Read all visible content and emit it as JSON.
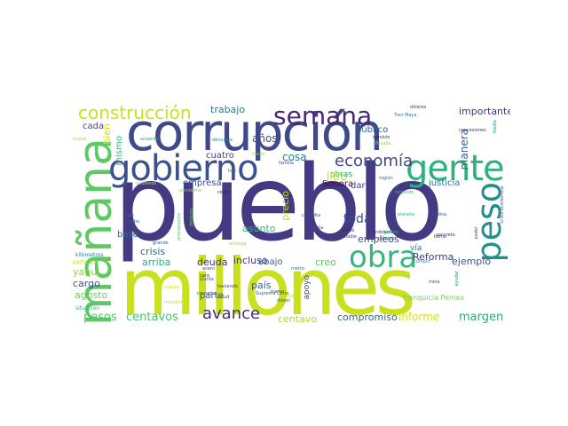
{
  "words": [
    {
      "text": "pueblo",
      "color": "#443a83"
    },
    {
      "text": "millones",
      "color": "#c8e020"
    },
    {
      "text": "corrupción",
      "color": "#3e4a89"
    },
    {
      "text": "mañana",
      "color": "#5ec962"
    },
    {
      "text": "gobierno",
      "color": "#3b518b"
    },
    {
      "text": "gente",
      "color": "#2db27d"
    },
    {
      "text": "peso",
      "color": "#21908d"
    },
    {
      "text": "obra",
      "color": "#35b779"
    },
    {
      "text": "semana",
      "color": "#482878"
    },
    {
      "text": "construcción",
      "color": "#cae11f"
    },
    {
      "text": "economía",
      "color": "#3f4889"
    },
    {
      "text": "avance",
      "color": "#472d7b"
    },
    {
      "text": "pesos",
      "color": "#57c666"
    },
    {
      "text": "centavos",
      "color": "#4ac16d"
    },
    {
      "text": "margen",
      "color": "#26ad81"
    },
    {
      "text": "informe",
      "color": "#d8e219"
    },
    {
      "text": "compromiso",
      "color": "#31668e"
    },
    {
      "text": "centavo",
      "color": "#a8db34"
    },
    {
      "text": "toda",
      "color": "#3d4e8a"
    },
    {
      "text": "obras",
      "color": "#20a386"
    },
    {
      "text": "ejemplo",
      "color": "#39568c"
    },
    {
      "text": "importante",
      "color": "#46337f"
    },
    {
      "text": "manera",
      "color": "#365c8d"
    },
    {
      "text": "años",
      "color": "#3b528b"
    },
    {
      "text": "trabajo",
      "color": "#2a788e"
    },
    {
      "text": "cada",
      "color": "#414487"
    },
    {
      "text": "bien",
      "color": "#d2e21b"
    },
    {
      "text": "mismo",
      "color": "#32b67a"
    },
    {
      "text": "cuatro",
      "color": "#433e85"
    },
    {
      "text": "cosa",
      "color": "#287d8e"
    },
    {
      "text": "empresa",
      "color": "#3e4c8a"
    },
    {
      "text": "litro",
      "color": "#c0df25"
    },
    {
      "text": "Sonora",
      "color": "#440154"
    },
    {
      "text": "dar",
      "color": "#404588"
    },
    {
      "text": "justicia",
      "color": "#2c728e"
    },
    {
      "text": "público",
      "color": "#33638d"
    },
    {
      "text": "precio",
      "color": "#bddf26"
    },
    {
      "text": "incluso",
      "color": "#46307e"
    },
    {
      "text": "crisis",
      "color": "#31688e"
    },
    {
      "text": "base",
      "color": "#2f6c8e"
    },
    {
      "text": "arriba",
      "color": "#29af7f"
    },
    {
      "text": "deuda",
      "color": "#472c7a"
    },
    {
      "text": "cargo",
      "color": "#3a538b"
    },
    {
      "text": "asunto",
      "color": "#35b779"
    },
    {
      "text": "abajo",
      "color": "#32648e"
    },
    {
      "text": "creo",
      "color": "#5cc863"
    },
    {
      "text": "empleos",
      "color": "#3e4989"
    },
    {
      "text": "vía",
      "color": "#2a768e"
    },
    {
      "text": "Reforma",
      "color": "#443983"
    },
    {
      "text": "yaqui",
      "color": "#8fd744"
    },
    {
      "text": "agosto",
      "color": "#6ccd5a"
    },
    {
      "text": "parte",
      "color": "#39558c"
    },
    {
      "text": "país",
      "color": "#34608d"
    },
    {
      "text": "apoyo",
      "color": "#3e4989"
    },
    {
      "text": "franquicia Pemex",
      "color": "#7ad151"
    },
    {
      "text": "situación",
      "color": "#2db27d"
    },
    {
      "text": "kilómetros",
      "color": "#23898e"
    },
    {
      "text": "particular",
      "color": "#bddf26"
    },
    {
      "text": "nuevo",
      "color": "#a0da39"
    },
    {
      "text": "acuerdo",
      "color": "#22a884"
    },
    {
      "text": "denuncia",
      "color": "#24878e"
    },
    {
      "text": "diesel",
      "color": "#38598c"
    },
    {
      "text": "Suprema Corte",
      "color": "#31688e"
    },
    {
      "text": "haciendo",
      "color": "#443a83"
    },
    {
      "text": "planta",
      "color": "#3a548c"
    },
    {
      "text": "cinco",
      "color": "#481467"
    },
    {
      "text": "hoy",
      "color": "#2c738e"
    },
    {
      "text": "consulta",
      "color": "#3b528b"
    },
    {
      "text": "cuenta",
      "color": "#414487"
    },
    {
      "text": "diario",
      "color": "#48186a"
    },
    {
      "text": "nadie",
      "color": "#453781"
    },
    {
      "text": "podemos",
      "color": "#c2df23"
    },
    {
      "text": "pandemia",
      "color": "#84d44b"
    },
    {
      "text": "región",
      "color": "#2c728e"
    },
    {
      "text": "segundo",
      "color": "#3bbb75"
    },
    {
      "text": "familia",
      "color": "#3a538b"
    },
    {
      "text": "Tren Maya",
      "color": "#277f8e"
    },
    {
      "text": "dólares",
      "color": "#443b84"
    },
    {
      "text": "servicio",
      "color": "#471063"
    },
    {
      "text": "fiscalía",
      "color": "#90d743"
    },
    {
      "text": "concesiones",
      "color": "#472a7a"
    },
    {
      "text": "problema",
      "color": "#46307e"
    },
    {
      "text": "saliendo",
      "color": "#2d718e"
    },
    {
      "text": "concreto",
      "color": "#48186a"
    },
    {
      "text": "Istmo",
      "color": "#481b6d"
    },
    {
      "text": "cumplir",
      "color": "#1f9e89"
    },
    {
      "text": "mina",
      "color": "#404688"
    },
    {
      "text": "grande",
      "color": "#3b528b"
    },
    {
      "text": "gas",
      "color": "#2d718e"
    },
    {
      "text": "cabo",
      "color": "#355f8d"
    },
    {
      "text": "cara",
      "color": "#482173"
    },
    {
      "text": "salud",
      "color": "#3f4788"
    },
    {
      "text": "metro",
      "color": "#2c738e"
    },
    {
      "text": "tramo",
      "color": "#46337f"
    },
    {
      "text": "corrupto",
      "color": "#3b528b"
    },
    {
      "text": "acero",
      "color": "#3f4788"
    },
    {
      "text": "mundial",
      "color": "#b5de2b"
    },
    {
      "text": "cuanto",
      "color": "#c8e020"
    },
    {
      "text": "entrega",
      "color": "#a2da37"
    },
    {
      "text": "vez",
      "color": "#433e85"
    },
    {
      "text": "pública",
      "color": "#3f4889"
    },
    {
      "text": "poder",
      "color": "#3e4c8a"
    },
    {
      "text": "ayudar",
      "color": "#1fa088"
    },
    {
      "text": "crisis económica",
      "color": "#3e4989"
    },
    {
      "text": "presupuesto",
      "color": "#50c46a"
    },
    {
      "text": "derecho",
      "color": "#66cb5d"
    },
    {
      "text": "planeta",
      "color": "#2db27d"
    },
    {
      "text": "gastos",
      "color": "#35b779"
    },
    {
      "text": "medio",
      "color": "#21918c"
    },
    {
      "text": "cierto",
      "color": "#93d741"
    },
    {
      "text": "jueves",
      "color": "#c5e021"
    }
  ]
}
